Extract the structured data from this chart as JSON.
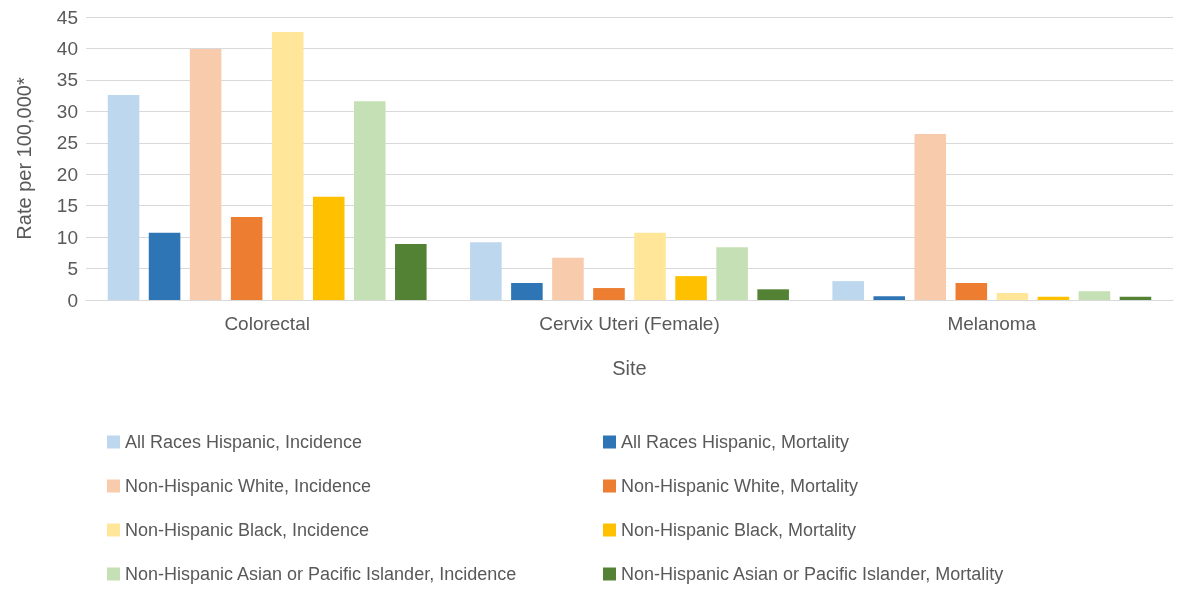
{
  "chart_data": {
    "type": "bar",
    "xlabel": "Site",
    "ylabel": "Rate per 100,000*",
    "categories": [
      "Colorectal",
      "Cervix Uteri (Female)",
      "Melanoma"
    ],
    "series": [
      {
        "name": "All Races Hispanic, Incidence",
        "color": "#bdd7ee",
        "values": [
          32.6,
          9.2,
          3.0
        ]
      },
      {
        "name": "All Races Hispanic, Mortality",
        "color": "#2e75b6",
        "values": [
          10.7,
          2.7,
          0.6
        ]
      },
      {
        "name": "Non-Hispanic White, Incidence",
        "color": "#f8cbad",
        "values": [
          39.9,
          6.7,
          26.4
        ]
      },
      {
        "name": "Non-Hispanic White, Mortality",
        "color": "#ed7d31",
        "values": [
          13.2,
          1.9,
          2.7
        ]
      },
      {
        "name": "Non-Hispanic Black, Incidence",
        "color": "#ffe699",
        "values": [
          42.6,
          10.7,
          1.1
        ]
      },
      {
        "name": "Non-Hispanic Black, Mortality",
        "color": "#ffc000",
        "values": [
          16.4,
          3.8,
          0.5
        ]
      },
      {
        "name": "Non-Hispanic Asian or Pacific Islander, Incidence",
        "color": "#c5e0b4",
        "values": [
          31.6,
          8.4,
          1.4
        ]
      },
      {
        "name": "Non-Hispanic Asian or Pacific Islander, Mortality",
        "color": "#548235",
        "values": [
          8.9,
          1.7,
          0.5
        ]
      }
    ],
    "ylim": [
      0,
      45
    ],
    "yticks": [
      0,
      5,
      10,
      15,
      20,
      25,
      30,
      35,
      40,
      45
    ],
    "grid": "y",
    "legend": "bottom"
  }
}
